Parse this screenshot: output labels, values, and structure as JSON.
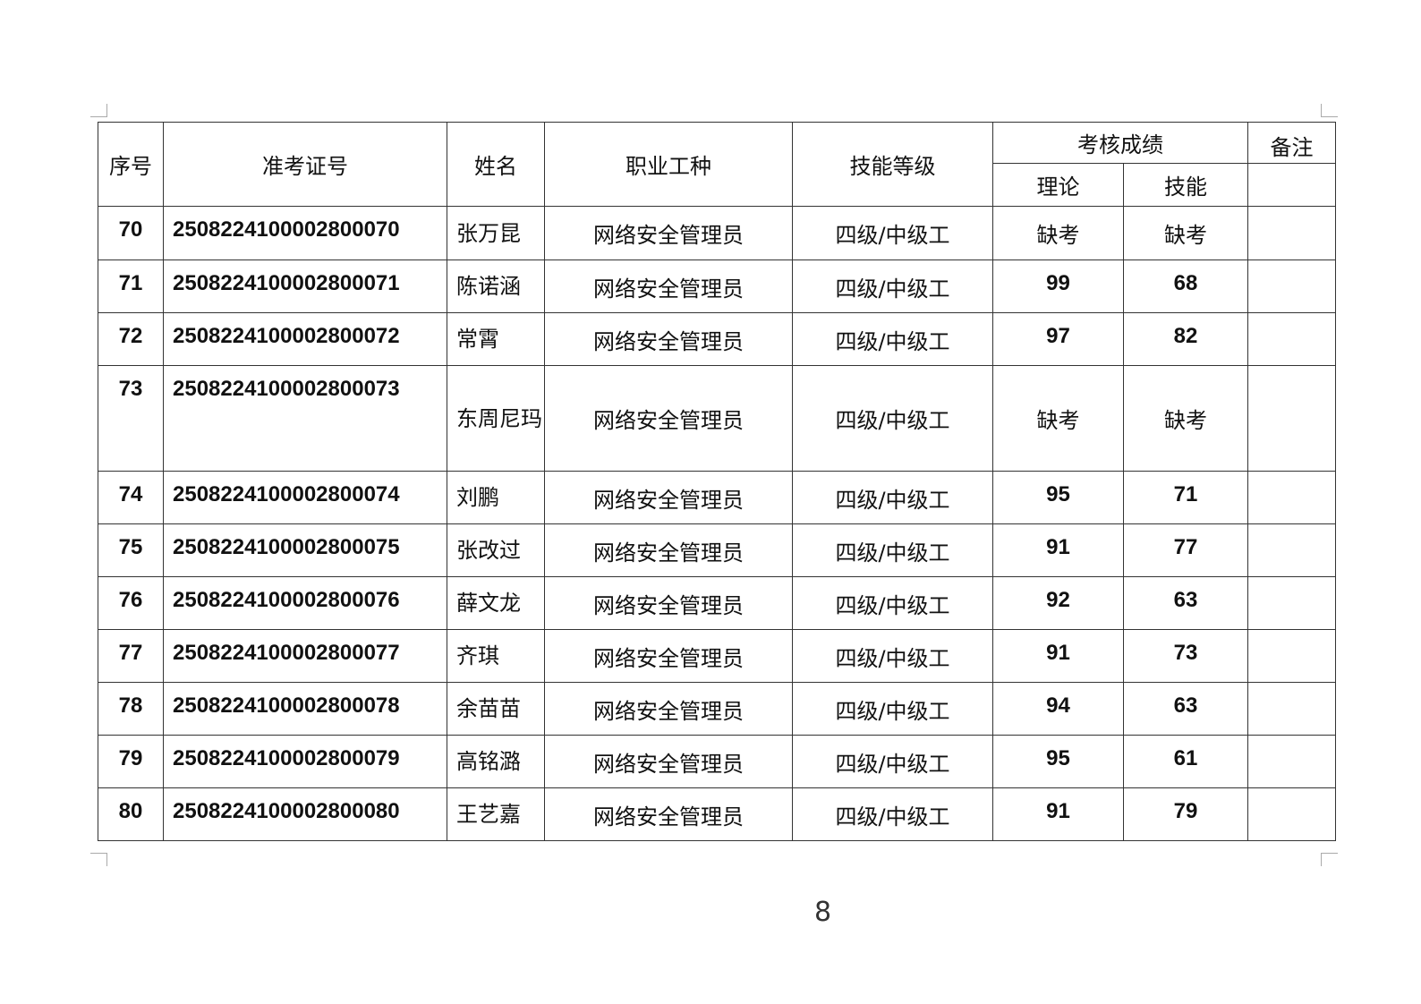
{
  "header": {
    "seq": "序号",
    "ticket": "准考证号",
    "name": "姓名",
    "occupation": "职业工种",
    "level": "技能等级",
    "scores": "考核成绩",
    "theory": "理论",
    "skill": "技能",
    "remarks": "备注"
  },
  "rows": [
    {
      "seq": "70",
      "ticket": "2508224100002800070",
      "name": "张万昆",
      "occupation": "网络安全管理员",
      "level": "四级/中级工",
      "theory": "缺考",
      "skill": "缺考",
      "remarks": ""
    },
    {
      "seq": "71",
      "ticket": "2508224100002800071",
      "name": "陈诺涵",
      "occupation": "网络安全管理员",
      "level": "四级/中级工",
      "theory": "99",
      "skill": "68",
      "remarks": ""
    },
    {
      "seq": "72",
      "ticket": "2508224100002800072",
      "name": "常霄",
      "occupation": "网络安全管理员",
      "level": "四级/中级工",
      "theory": "97",
      "skill": "82",
      "remarks": ""
    },
    {
      "seq": "73",
      "ticket": "2508224100002800073",
      "name": "东周尼玛",
      "occupation": "网络安全管理员",
      "level": "四级/中级工",
      "theory": "缺考",
      "skill": "缺考",
      "remarks": ""
    },
    {
      "seq": "74",
      "ticket": "2508224100002800074",
      "name": "刘鹏",
      "occupation": "网络安全管理员",
      "level": "四级/中级工",
      "theory": "95",
      "skill": "71",
      "remarks": ""
    },
    {
      "seq": "75",
      "ticket": "2508224100002800075",
      "name": "张改过",
      "occupation": "网络安全管理员",
      "level": "四级/中级工",
      "theory": "91",
      "skill": "77",
      "remarks": ""
    },
    {
      "seq": "76",
      "ticket": "2508224100002800076",
      "name": "薛文龙",
      "occupation": "网络安全管理员",
      "level": "四级/中级工",
      "theory": "92",
      "skill": "63",
      "remarks": ""
    },
    {
      "seq": "77",
      "ticket": "2508224100002800077",
      "name": "齐琪",
      "occupation": "网络安全管理员",
      "level": "四级/中级工",
      "theory": "91",
      "skill": "73",
      "remarks": ""
    },
    {
      "seq": "78",
      "ticket": "2508224100002800078",
      "name": "余苗苗",
      "occupation": "网络安全管理员",
      "level": "四级/中级工",
      "theory": "94",
      "skill": "63",
      "remarks": ""
    },
    {
      "seq": "79",
      "ticket": "2508224100002800079",
      "name": "高铭潞",
      "occupation": "网络安全管理员",
      "level": "四级/中级工",
      "theory": "95",
      "skill": "61",
      "remarks": ""
    },
    {
      "seq": "80",
      "ticket": "2508224100002800080",
      "name": "王艺嘉",
      "occupation": "网络安全管理员",
      "level": "四级/中级工",
      "theory": "91",
      "skill": "79",
      "remarks": ""
    }
  ],
  "page_number": "8"
}
